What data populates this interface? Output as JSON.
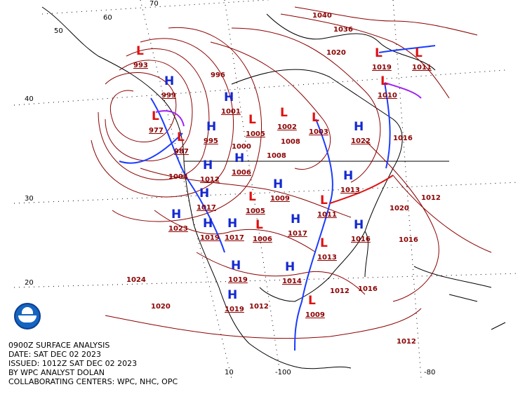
{
  "title_block": {
    "line1": "0900Z SURFACE ANALYSIS",
    "line2": "DATE: SAT DEC 02 2023",
    "line3": "ISSUED: 1012Z SAT DEC 02 2023",
    "line4": "BY WPC ANALYST DOLAN",
    "line5": "COLLABORATING CENTERS: WPC, NHC, OPC"
  },
  "logo": "NOAA",
  "grid_labels": [
    "70",
    "60",
    "50",
    "40",
    "30",
    "20",
    "10",
    "-100",
    "-80"
  ],
  "colors": {
    "isobar": "#8b0000",
    "high": "#1428d0",
    "low": "#e01010",
    "cold_front": "#1a3cff",
    "warm_front": "#e01010",
    "occluded": "#a020f0",
    "coast": "#000000"
  },
  "pressure_centers": [
    {
      "type": "L",
      "value": "977"
    },
    {
      "type": "L",
      "value": "987"
    },
    {
      "type": "L",
      "value": "993"
    },
    {
      "type": "H",
      "value": "999"
    },
    {
      "type": "H",
      "value": "1001"
    },
    {
      "type": "L",
      "value": "1005"
    },
    {
      "type": "L",
      "value": "1002"
    },
    {
      "type": "L",
      "value": "1003"
    },
    {
      "type": "L",
      "value": "1019"
    },
    {
      "type": "L",
      "value": "1011"
    },
    {
      "type": "L",
      "value": "1010"
    },
    {
      "type": "H",
      "value": "1022"
    },
    {
      "type": "H",
      "value": "995"
    },
    {
      "type": "H",
      "value": "1006"
    },
    {
      "type": "H",
      "value": "1012"
    },
    {
      "type": "H",
      "value": "1017"
    },
    {
      "type": "L",
      "value": "1005"
    },
    {
      "type": "H",
      "value": "1009"
    },
    {
      "type": "H",
      "value": "1023"
    },
    {
      "type": "H",
      "value": "1019"
    },
    {
      "type": "H",
      "value": "1017"
    },
    {
      "type": "L",
      "value": "1006"
    },
    {
      "type": "H",
      "value": "1017"
    },
    {
      "type": "L",
      "value": "1011"
    },
    {
      "type": "H",
      "value": "1013"
    },
    {
      "type": "L",
      "value": "1013"
    },
    {
      "type": "H",
      "value": "1016"
    },
    {
      "type": "H",
      "value": "1014"
    },
    {
      "type": "H",
      "value": "1019"
    },
    {
      "type": "H",
      "value": "1019"
    },
    {
      "type": "L",
      "value": "1009"
    }
  ],
  "isobar_labels": [
    "1040",
    "1036",
    "1020",
    "1016",
    "1020",
    "1012",
    "1024",
    "1020",
    "1016",
    "1012",
    "1012",
    "1016",
    "1012",
    "1008",
    "1000",
    "996",
    "1004",
    "1008"
  ]
}
